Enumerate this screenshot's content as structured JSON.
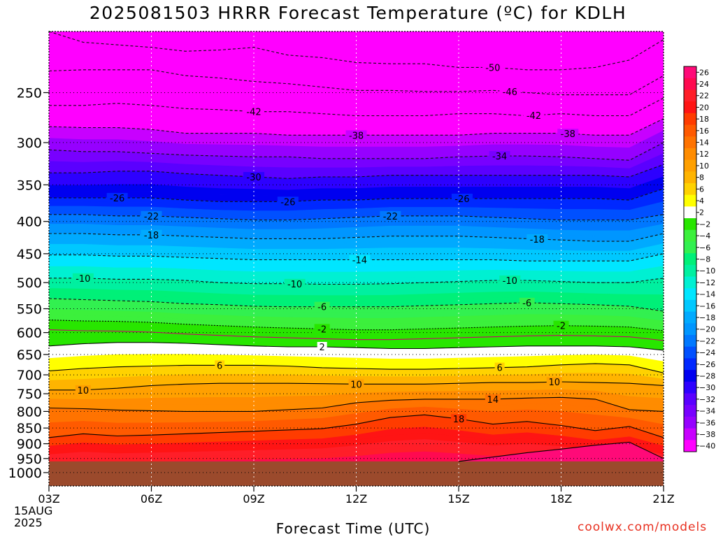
{
  "chart_data": {
    "type": "heatmap",
    "title": "2025081503 HRRR Forecast Temperature (ºC) for KDLH",
    "xlabel": "Forecast Time (UTC)",
    "credit": "coolwx.com/models",
    "date_day": "15AUG",
    "date_year": "2025",
    "x_ticks": [
      "03Z",
      "06Z",
      "09Z",
      "12Z",
      "15Z",
      "18Z",
      "21Z"
    ],
    "x_hours": [
      3,
      6,
      9,
      12,
      15,
      18,
      21
    ],
    "xlim": [
      3,
      21
    ],
    "y_ticks": [
      250,
      300,
      350,
      400,
      450,
      500,
      550,
      600,
      650,
      700,
      750,
      800,
      850,
      900,
      950,
      1000
    ],
    "ylim": [
      200,
      1050
    ],
    "y_scale": "log",
    "y_inverted": true,
    "ground_pressure": 960,
    "ground_color": "#9b4a2c",
    "colorbar": {
      "ticks": [
        26,
        24,
        22,
        20,
        18,
        16,
        14,
        12,
        10,
        8,
        6,
        4,
        2,
        -2,
        -4,
        -6,
        -8,
        -10,
        -12,
        -14,
        -16,
        -18,
        -20,
        -22,
        -24,
        -26,
        -28,
        -30,
        -32,
        -34,
        -36,
        -38,
        -40
      ],
      "colors": [
        "#ff0a78",
        "#ff0a50",
        "#ff1e28",
        "#ff1414",
        "#ff3c00",
        "#ff5a00",
        "#ff7300",
        "#ff8c00",
        "#ffa000",
        "#ffb400",
        "#ffd200",
        "#ffff00",
        "#ffffff",
        "#28e600",
        "#3cf03c",
        "#32f050",
        "#00f078",
        "#00f0a0",
        "#00f0d2",
        "#00e6ff",
        "#00c8ff",
        "#00aaff",
        "#0096ff",
        "#0078ff",
        "#0050ff",
        "#0028ff",
        "#0000f0",
        "#2d00ff",
        "#5a00ff",
        "#7800ff",
        "#9600ff",
        "#c800ff",
        "#ff00ff"
      ]
    },
    "contours": [
      {
        "label": "-50",
        "label_at": 16,
        "p": [
          200,
          208,
          210,
          212,
          215,
          214,
          212,
          218,
          220,
          224,
          225,
          225,
          228,
          228,
          230,
          230,
          228,
          222,
          206
        ]
      },
      {
        "label": "-46",
        "label_at": 16.5,
        "p": [
          231,
          230,
          230,
          230,
          235,
          237,
          240,
          242,
          245,
          248,
          248,
          249,
          249,
          248,
          250,
          252,
          252,
          252,
          235
        ]
      },
      {
        "label": "-42",
        "label_at": 9,
        "p": [
          262,
          262,
          260,
          262,
          265,
          266,
          268,
          268,
          270,
          272,
          272,
          272,
          270,
          270,
          272,
          270,
          272,
          272,
          255
        ]
      },
      {
        "label": "-42",
        "label_at": 17.2,
        "p": [
          262,
          262,
          260,
          262,
          265,
          266,
          268,
          268,
          270,
          272,
          272,
          272,
          270,
          270,
          272,
          270,
          272,
          272,
          255
        ]
      },
      {
        "label": "-38",
        "label_at": 12,
        "p": [
          283,
          284,
          284,
          286,
          290,
          290,
          290,
          292,
          292,
          292,
          292,
          292,
          292,
          290,
          290,
          290,
          292,
          292,
          275
        ]
      },
      {
        "label": "-38",
        "label_at": 18.2,
        "p": [
          283,
          284,
          284,
          286,
          290,
          290,
          290,
          292,
          292,
          292,
          292,
          292,
          292,
          290,
          290,
          290,
          292,
          292,
          275
        ]
      },
      {
        "label": "-34",
        "label_at": 16.2,
        "p": [
          308,
          310,
          310,
          312,
          314,
          315,
          316,
          316,
          318,
          318,
          318,
          318,
          316,
          315,
          315,
          316,
          318,
          320,
          300
        ]
      },
      {
        "label": "-30",
        "label_at": 9,
        "p": [
          335,
          335,
          333,
          333,
          336,
          338,
          340,
          342,
          340,
          340,
          338,
          338,
          338,
          338,
          338,
          338,
          338,
          340,
          325
        ]
      },
      {
        "label": "-26",
        "label_at": 5,
        "p": [
          367,
          367,
          367,
          367,
          370,
          372,
          372,
          372,
          370,
          370,
          368,
          368,
          368,
          368,
          368,
          368,
          368,
          370,
          355
        ]
      },
      {
        "label": "-26",
        "label_at": 10,
        "p": [
          367,
          367,
          367,
          367,
          370,
          372,
          372,
          372,
          370,
          370,
          368,
          368,
          368,
          368,
          368,
          368,
          368,
          370,
          355
        ]
      },
      {
        "label": "-26",
        "label_at": 15.1,
        "p": [
          367,
          367,
          367,
          367,
          370,
          372,
          372,
          372,
          370,
          370,
          368,
          368,
          368,
          368,
          368,
          368,
          368,
          370,
          355
        ]
      },
      {
        "label": "-22",
        "label_at": 6,
        "p": [
          390,
          390,
          392,
          392,
          394,
          396,
          398,
          398,
          396,
          394,
          392,
          392,
          392,
          394,
          396,
          398,
          398,
          398,
          390
        ]
      },
      {
        "label": "-22",
        "label_at": 13,
        "p": [
          390,
          390,
          392,
          392,
          394,
          396,
          398,
          398,
          396,
          394,
          392,
          392,
          392,
          394,
          396,
          398,
          398,
          398,
          390
        ]
      },
      {
        "label": "-18",
        "label_at": 6,
        "p": [
          418,
          418,
          420,
          420,
          422,
          424,
          426,
          426,
          426,
          424,
          422,
          422,
          422,
          424,
          426,
          428,
          430,
          430,
          418
        ]
      },
      {
        "label": "-18",
        "label_at": 17.3,
        "p": [
          418,
          418,
          420,
          420,
          422,
          424,
          426,
          426,
          426,
          424,
          422,
          422,
          422,
          424,
          426,
          428,
          430,
          430,
          418
        ]
      },
      {
        "label": "-14",
        "label_at": 12.1,
        "p": [
          452,
          452,
          454,
          454,
          456,
          458,
          460,
          460,
          460,
          460,
          460,
          460,
          460,
          460,
          462,
          462,
          462,
          462,
          450
        ]
      },
      {
        "label": "-10",
        "label_at": 4,
        "p": [
          492,
          492,
          494,
          494,
          496,
          500,
          502,
          502,
          503,
          503,
          502,
          500,
          498,
          496,
          496,
          498,
          500,
          500,
          492
        ]
      },
      {
        "label": "-10",
        "label_at": 10.2,
        "p": [
          492,
          492,
          494,
          494,
          496,
          500,
          502,
          502,
          503,
          503,
          502,
          500,
          498,
          496,
          496,
          498,
          500,
          500,
          492
        ]
      },
      {
        "label": "-10",
        "label_at": 16.5,
        "p": [
          492,
          492,
          494,
          494,
          496,
          500,
          502,
          502,
          503,
          503,
          502,
          500,
          498,
          496,
          496,
          498,
          500,
          500,
          492
        ]
      },
      {
        "label": "-6",
        "label_at": 11,
        "p": [
          530,
          532,
          534,
          536,
          540,
          542,
          545,
          546,
          546,
          546,
          546,
          544,
          542,
          540,
          538,
          540,
          542,
          545,
          555
        ]
      },
      {
        "label": "-6",
        "label_at": 17,
        "p": [
          530,
          532,
          534,
          536,
          540,
          542,
          545,
          546,
          546,
          546,
          546,
          544,
          542,
          540,
          538,
          540,
          542,
          545,
          555
        ]
      },
      {
        "label": "-2",
        "label_at": 11,
        "p": [
          573,
          575,
          576,
          578,
          582,
          585,
          588,
          590,
          592,
          594,
          594,
          592,
          590,
          588,
          586,
          585,
          586,
          588,
          596
        ]
      },
      {
        "label": "-2",
        "label_at": 18,
        "p": [
          573,
          575,
          576,
          578,
          582,
          585,
          588,
          590,
          592,
          594,
          594,
          592,
          590,
          588,
          586,
          585,
          586,
          588,
          596
        ]
      },
      {
        "label": "2",
        "label_at": 11,
        "p": [
          630,
          625,
          622,
          622,
          624,
          627,
          630,
          632,
          632,
          634,
          636,
          636,
          634,
          632,
          630,
          630,
          630,
          632,
          640
        ]
      },
      {
        "label": "6",
        "label_at": 8,
        "p": [
          690,
          684,
          680,
          678,
          676,
          676,
          676,
          678,
          682,
          684,
          686,
          686,
          684,
          682,
          680,
          675,
          672,
          675,
          695
        ]
      },
      {
        "label": "6",
        "label_at": 16.2,
        "p": [
          690,
          684,
          680,
          678,
          676,
          676,
          676,
          678,
          682,
          684,
          686,
          686,
          684,
          682,
          680,
          675,
          672,
          675,
          695
        ]
      },
      {
        "label": "10",
        "label_at": 4,
        "p": [
          740,
          740,
          735,
          728,
          724,
          722,
          722,
          722,
          723,
          724,
          724,
          724,
          722,
          720,
          720,
          718,
          720,
          722,
          728
        ]
      },
      {
        "label": "10",
        "label_at": 12,
        "p": [
          740,
          740,
          735,
          728,
          724,
          722,
          722,
          722,
          723,
          724,
          724,
          724,
          722,
          720,
          720,
          718,
          720,
          722,
          728
        ]
      },
      {
        "label": "10",
        "label_at": 17.8,
        "p": [
          740,
          740,
          735,
          728,
          724,
          722,
          722,
          722,
          723,
          724,
          724,
          724,
          722,
          720,
          720,
          718,
          720,
          722,
          728
        ]
      },
      {
        "label": "14",
        "label_at": 16,
        "p": [
          790,
          792,
          796,
          798,
          800,
          800,
          800,
          795,
          790,
          775,
          768,
          765,
          765,
          765,
          762,
          760,
          765,
          795,
          800
        ]
      },
      {
        "label": "18",
        "label_at": 15,
        "p": [
          880,
          868,
          875,
          872,
          868,
          864,
          860,
          856,
          852,
          838,
          818,
          810,
          822,
          838,
          830,
          842,
          858,
          845,
          880
        ]
      },
      {
        "label": "",
        "label_at": 0,
        "p": [
          null,
          null,
          null,
          null,
          null,
          null,
          null,
          null,
          null,
          null,
          null,
          null,
          960,
          945,
          930,
          918,
          905,
          895,
          950
        ]
      }
    ]
  }
}
